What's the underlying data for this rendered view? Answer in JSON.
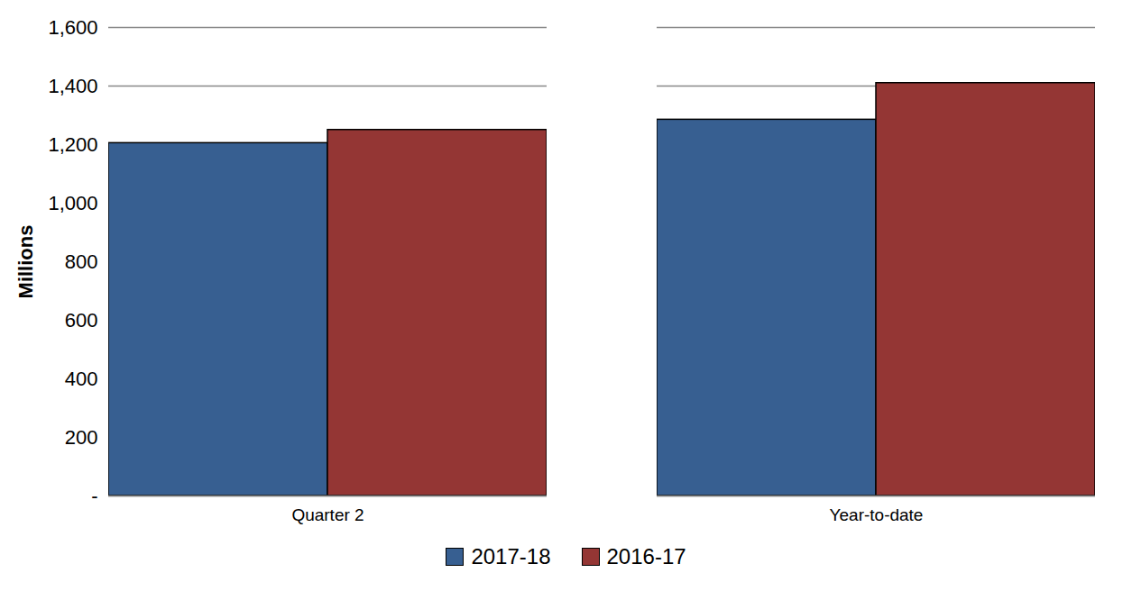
{
  "chart_data": {
    "type": "bar",
    "categories": [
      "Quarter 2",
      "Year-to-date"
    ],
    "series": [
      {
        "name": "2017-18",
        "color": "#375f91",
        "values": [
          1205,
          1285
        ]
      },
      {
        "name": "2016-17",
        "color": "#943634",
        "values": [
          1250,
          1410
        ]
      }
    ],
    "y_label": "Millions",
    "ylim": [
      0,
      1600
    ],
    "yticks": [
      {
        "value": 0,
        "label": "-"
      },
      {
        "value": 200,
        "label": "200"
      },
      {
        "value": 400,
        "label": "400"
      },
      {
        "value": 600,
        "label": "600"
      },
      {
        "value": 800,
        "label": "800"
      },
      {
        "value": 1000,
        "label": "1,000"
      },
      {
        "value": 1200,
        "label": "1,200"
      },
      {
        "value": 1400,
        "label": "1,400"
      },
      {
        "value": 1600,
        "label": "1,600"
      }
    ],
    "grid": true,
    "legend": "bottom"
  }
}
